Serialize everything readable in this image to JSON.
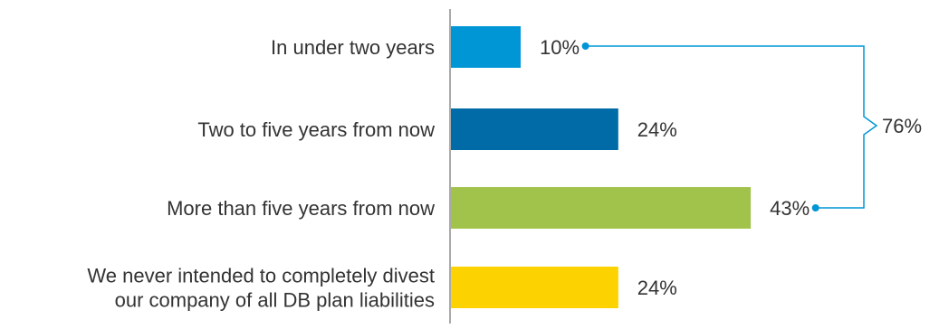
{
  "chart_data": {
    "type": "bar",
    "orientation": "horizontal",
    "categories": [
      [
        "In under two years"
      ],
      [
        "Two to five years from now"
      ],
      [
        "More than five years from now"
      ],
      [
        "We never intended to completely divest",
        "our company of all DB plan liabilities"
      ]
    ],
    "values": [
      10,
      24,
      43,
      24
    ],
    "data_labels": [
      "10%",
      "24%",
      "43%",
      "24%"
    ],
    "colors": [
      "#0096d6",
      "#006ba6",
      "#a2c34b",
      "#fcd200"
    ],
    "value_unit": "%",
    "xlim": [
      0,
      50
    ],
    "grid": false,
    "legend": "none",
    "bracket": {
      "label": "76%",
      "spans_categories": [
        "In under two years",
        "More than five years from now"
      ],
      "color": "#0096d6"
    }
  }
}
